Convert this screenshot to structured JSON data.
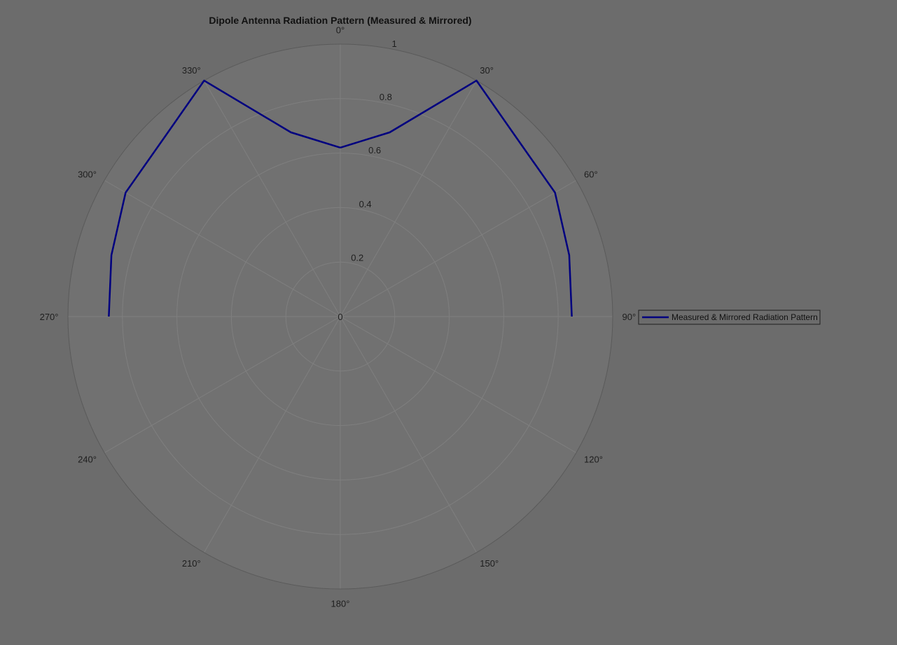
{
  "chart_data": {
    "type": "line",
    "projection": "polar",
    "title": "Dipole Antenna Radiation Pattern (Measured & Mirrored)",
    "theta_zero_location": "top",
    "theta_direction": "clockwise",
    "theta_ticks": [
      0,
      30,
      60,
      90,
      120,
      150,
      180,
      210,
      240,
      270,
      300,
      330
    ],
    "theta_tick_labels": [
      "0°",
      "30°",
      "60°",
      "90°",
      "120°",
      "150°",
      "180°",
      "210°",
      "240°",
      "270°",
      "300°",
      "330°"
    ],
    "r_ticks": [
      0,
      0.2,
      0.4,
      0.6,
      0.8,
      1
    ],
    "r_tick_labels": [
      "0",
      "0.2",
      "0.4",
      "0.6",
      "0.8",
      "1"
    ],
    "rlim": [
      0,
      1
    ],
    "grid": true,
    "legend": {
      "placement": "right",
      "entries": [
        "Measured & Mirrored Radiation Pattern"
      ]
    },
    "series": [
      {
        "name": "Measured & Mirrored Radiation Pattern",
        "color": "#00007f",
        "theta_deg": [
          0,
          15,
          30,
          45,
          60,
          75,
          90,
          270,
          285,
          300,
          315,
          330,
          345,
          360
        ],
        "r": [
          0.62,
          0.7,
          1.0,
          0.92,
          0.91,
          0.87,
          0.85,
          0.85,
          0.87,
          0.91,
          0.92,
          1.0,
          0.7,
          0.62
        ]
      }
    ]
  },
  "colors": {
    "background": "#6c6c6c",
    "axes_face": "#717171",
    "grid": "#7f7f7f",
    "outer_ring": "#5a5a5a",
    "text": "#1e1e1e"
  }
}
